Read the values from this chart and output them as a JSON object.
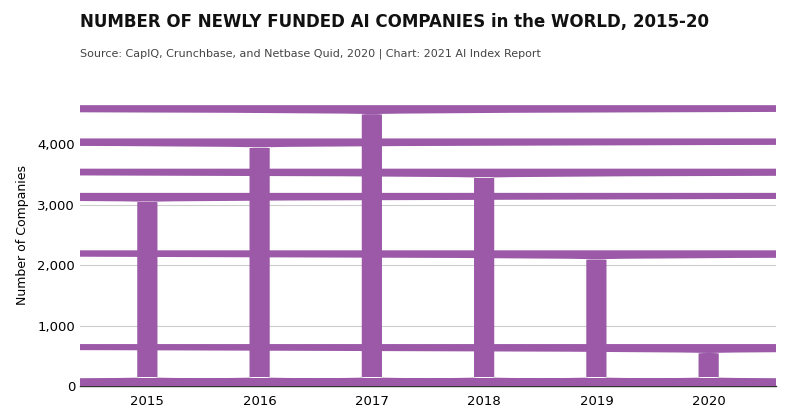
{
  "title_bold": "NUMBER OF NEWLY FUNDED AI COMPANIES in the WORLD, 2015-20",
  "subtitle": "Source: CapIQ, Crunchbase, and Netbase Quid, 2020 | Chart: 2021 AI Index Report",
  "years": [
    "2015",
    "2016",
    "2017",
    "2018",
    "2019",
    "2020"
  ],
  "values": [
    3200,
    4100,
    4650,
    3600,
    2250,
    700
  ],
  "bar_color": "#9B59A8",
  "ylabel": "Number of Companies",
  "ylim": [
    0,
    5000
  ],
  "yticks": [
    0,
    1000,
    2000,
    3000,
    4000
  ],
  "background_color": "#ffffff",
  "bar_width": 0.18,
  "title_fontsize": 12,
  "subtitle_fontsize": 8,
  "ylabel_fontsize": 9,
  "tick_fontsize": 9.5,
  "grid_color": "#cccccc",
  "axis_color": "#333333"
}
